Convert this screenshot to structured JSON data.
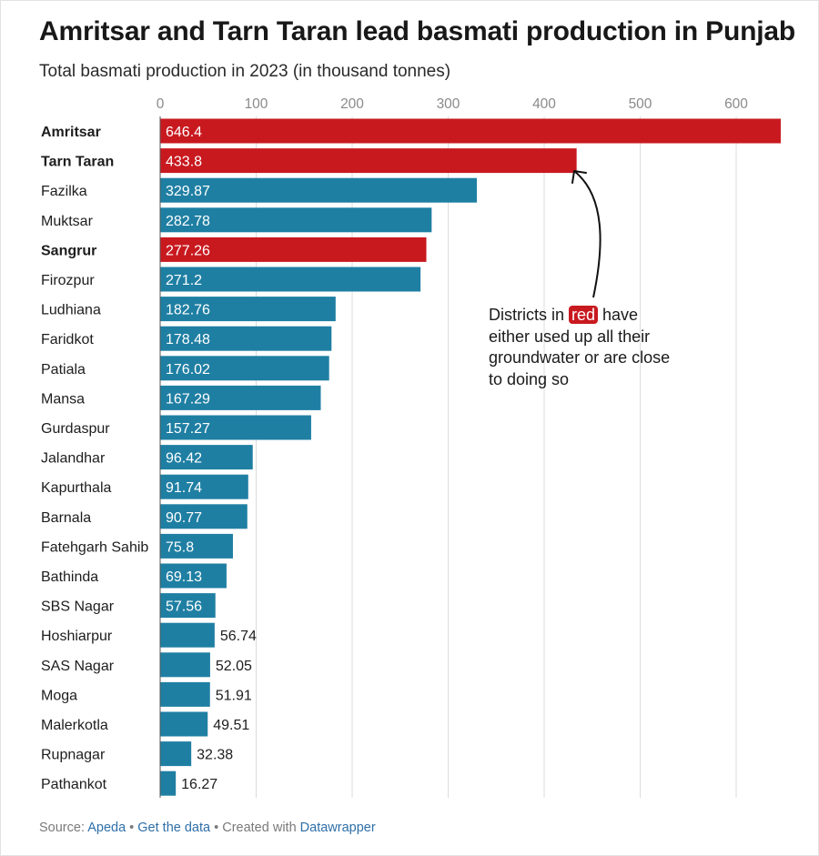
{
  "title": "Amritsar and Tarn Taran lead basmati production in Punjab",
  "subtitle": "Total basmati production in 2023 (in thousand tonnes)",
  "annotation": {
    "before": "Districts in ",
    "highlight": "red",
    "after": " have either used up all their groundwater or are close to doing so"
  },
  "source": {
    "prefix": "Source: ",
    "source_link": "Apeda",
    "separator": " • ",
    "data_link": "Get the data",
    "created": " • Created with ",
    "tool_link": "Datawrapper"
  },
  "colors": {
    "red": "#c8191f",
    "blue": "#1f7fa3",
    "grid": "#dcdcdc",
    "axis_text": "#8a8a8a"
  },
  "chart_data": {
    "type": "bar",
    "orientation": "horizontal",
    "xlim": [
      0,
      650
    ],
    "x_ticks": [
      0,
      100,
      200,
      300,
      400,
      500,
      600
    ],
    "grid": true,
    "categories": [
      "Amritsar",
      "Tarn Taran",
      "Fazilka",
      "Muktsar",
      "Sangrur",
      "Firozpur",
      "Ludhiana",
      "Faridkot",
      "Patiala",
      "Mansa",
      "Gurdaspur",
      "Jalandhar",
      "Kapurthala",
      "Barnala",
      "Fatehgarh Sahib",
      "Bathinda",
      "SBS Nagar",
      "Hoshiarpur",
      "SAS Nagar",
      "Moga",
      "Malerkotla",
      "Rupnagar",
      "Pathankot"
    ],
    "values": [
      646.4,
      433.8,
      329.87,
      282.78,
      277.26,
      271.2,
      182.76,
      178.48,
      176.02,
      167.29,
      157.27,
      96.42,
      91.74,
      90.77,
      75.8,
      69.13,
      57.56,
      56.74,
      52.05,
      51.91,
      49.51,
      32.38,
      16.27
    ],
    "value_labels": [
      "646.4",
      "433.8",
      "329.87",
      "282.78",
      "277.26",
      "271.2",
      "182.76",
      "178.48",
      "176.02",
      "167.29",
      "157.27",
      "96.42",
      "91.74",
      "90.77",
      "75.8",
      "69.13",
      "57.56",
      "56.74",
      "52.05",
      "51.91",
      "49.51",
      "32.38",
      "16.27"
    ],
    "highlighted": [
      "Amritsar",
      "Tarn Taran",
      "Sangrur"
    ]
  }
}
